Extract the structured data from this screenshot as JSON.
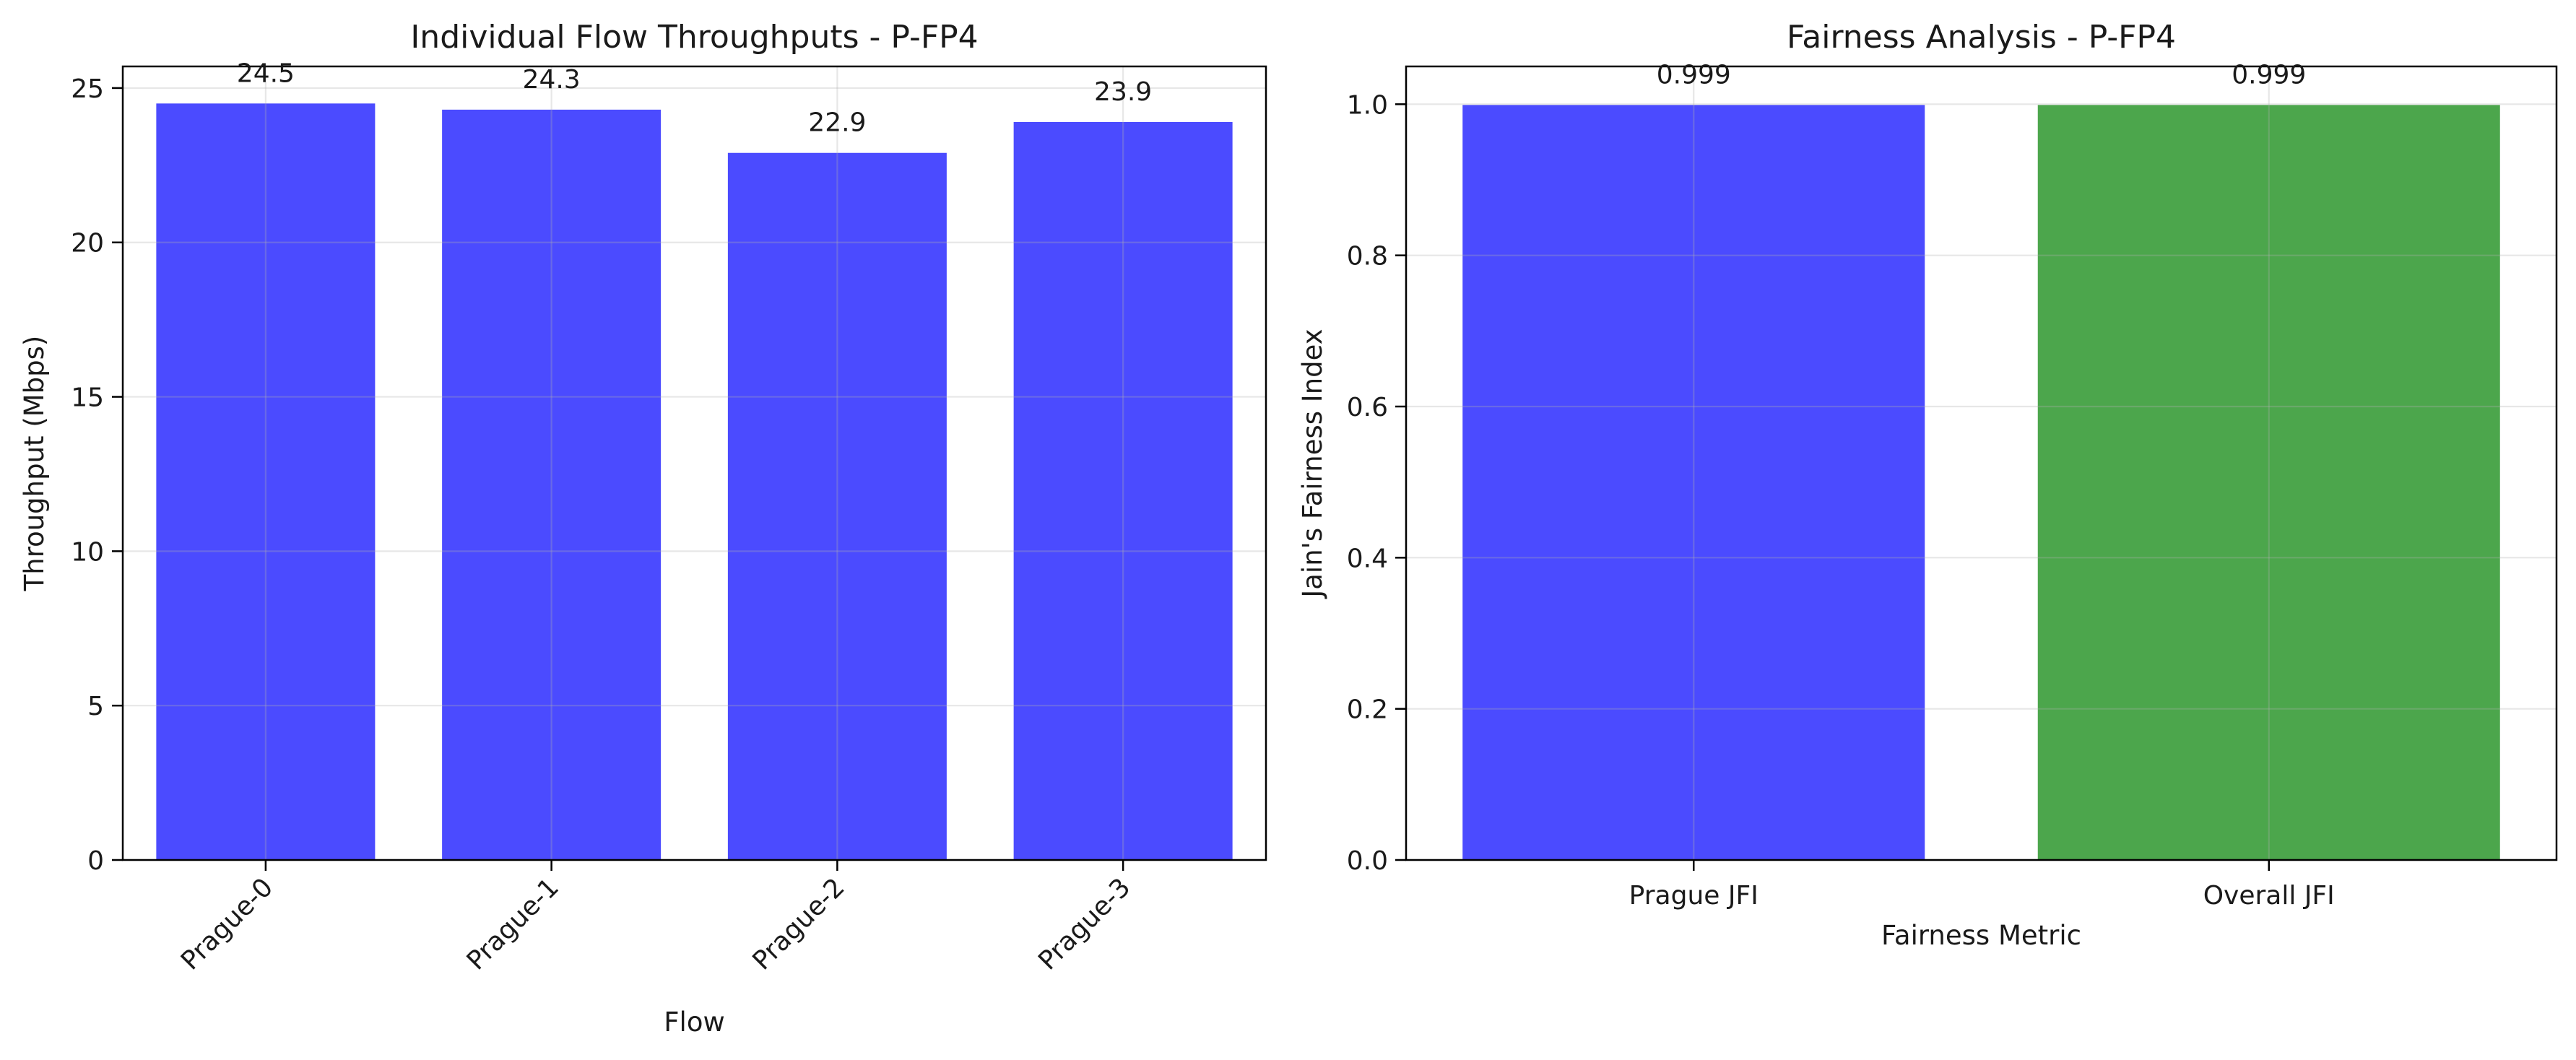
{
  "chart_data": [
    {
      "type": "bar",
      "title": "Individual Flow Throughputs - P-FP4",
      "xlabel": "Flow",
      "ylabel": "Throughput (Mbps)",
      "categories": [
        "Prague-0",
        "Prague-1",
        "Prague-2",
        "Prague-3"
      ],
      "values": [
        24.5,
        24.3,
        22.9,
        23.9
      ],
      "value_labels": [
        "24.5",
        "24.3",
        "22.9",
        "23.9"
      ],
      "ylim": [
        0,
        25.7
      ],
      "yticks": [
        0,
        5,
        10,
        15,
        20,
        25
      ],
      "ytick_labels": [
        "0",
        "5",
        "10",
        "15",
        "20",
        "25"
      ],
      "xtick_rotation": 45,
      "grid": true,
      "colors": [
        "#4b4bff",
        "#4b4bff",
        "#4b4bff",
        "#4b4bff"
      ]
    },
    {
      "type": "bar",
      "title": "Fairness Analysis - P-FP4",
      "xlabel": "Fairness Metric",
      "ylabel": "Jain's Fairness Index",
      "categories": [
        "Prague JFI",
        "Overall JFI"
      ],
      "values": [
        0.999,
        0.999
      ],
      "value_labels": [
        "0.999",
        "0.999"
      ],
      "ylim": [
        0,
        1.05
      ],
      "yticks": [
        0.0,
        0.2,
        0.4,
        0.6,
        0.8,
        1.0
      ],
      "ytick_labels": [
        "0.0",
        "0.2",
        "0.4",
        "0.6",
        "0.8",
        "1.0"
      ],
      "xtick_rotation": 0,
      "grid": true,
      "colors": [
        "#4b4bff",
        "#4ca64c"
      ]
    }
  ]
}
